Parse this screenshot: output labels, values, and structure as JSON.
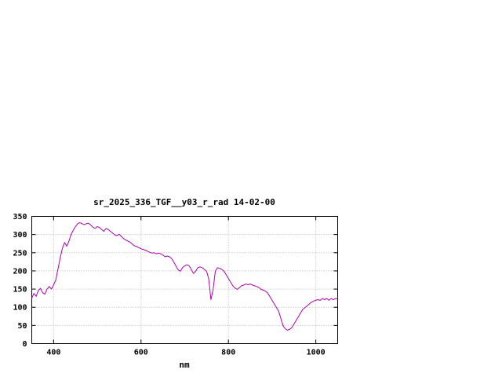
{
  "chart_data": {
    "type": "line",
    "title": "sr_2025_336_TGF__y03_r_rad 14-02-00",
    "xlabel": "nm",
    "ylabel": "",
    "xlim": [
      350,
      1050
    ],
    "ylim": [
      0,
      350
    ],
    "xticks": [
      400,
      600,
      800,
      1000
    ],
    "yticks": [
      0,
      50,
      100,
      150,
      200,
      250,
      300,
      350
    ],
    "grid": true,
    "legend": "none",
    "line_color": "#b000b0",
    "series": [
      {
        "name": "spectral radiance",
        "x": [
          350,
          355,
          360,
          365,
          370,
          375,
          380,
          385,
          390,
          395,
          400,
          405,
          410,
          415,
          420,
          425,
          430,
          435,
          440,
          445,
          450,
          455,
          460,
          465,
          470,
          475,
          480,
          485,
          490,
          495,
          500,
          505,
          510,
          515,
          520,
          525,
          530,
          535,
          540,
          545,
          550,
          555,
          560,
          565,
          570,
          575,
          580,
          585,
          590,
          595,
          600,
          605,
          610,
          615,
          620,
          625,
          630,
          635,
          640,
          645,
          650,
          655,
          660,
          665,
          670,
          675,
          680,
          685,
          690,
          695,
          700,
          705,
          710,
          715,
          720,
          725,
          730,
          735,
          740,
          745,
          750,
          755,
          760,
          765,
          770,
          775,
          780,
          785,
          790,
          795,
          800,
          805,
          810,
          815,
          820,
          825,
          830,
          835,
          840,
          845,
          850,
          855,
          860,
          865,
          870,
          875,
          880,
          885,
          890,
          895,
          900,
          905,
          910,
          915,
          920,
          925,
          930,
          935,
          940,
          945,
          950,
          955,
          960,
          965,
          970,
          975,
          980,
          985,
          990,
          995,
          1000,
          1005,
          1010,
          1015,
          1020,
          1025,
          1030,
          1035,
          1040,
          1045,
          1050
        ],
        "values": [
          125,
          138,
          130,
          146,
          152,
          140,
          136,
          150,
          157,
          150,
          162,
          175,
          205,
          235,
          262,
          278,
          268,
          282,
          300,
          312,
          322,
          330,
          333,
          330,
          327,
          330,
          331,
          326,
          320,
          317,
          322,
          319,
          314,
          309,
          317,
          314,
          309,
          304,
          299,
          297,
          301,
          295,
          289,
          285,
          282,
          279,
          274,
          269,
          267,
          264,
          261,
          259,
          257,
          254,
          251,
          249,
          250,
          247,
          249,
          247,
          244,
          239,
          241,
          239,
          234,
          224,
          213,
          203,
          199,
          209,
          214,
          217,
          214,
          204,
          193,
          199,
          209,
          211,
          209,
          204,
          199,
          178,
          121,
          149,
          199,
          209,
          207,
          204,
          199,
          189,
          179,
          169,
          159,
          153,
          149,
          154,
          159,
          161,
          164,
          162,
          164,
          161,
          159,
          157,
          154,
          149,
          147,
          144,
          139,
          129,
          119,
          109,
          99,
          89,
          69,
          49,
          41,
          37,
          39,
          44,
          54,
          64,
          74,
          84,
          94,
          99,
          104,
          109,
          114,
          117,
          119,
          121,
          119,
          124,
          121,
          124,
          119,
          124,
          121,
          124,
          123
        ]
      }
    ]
  }
}
